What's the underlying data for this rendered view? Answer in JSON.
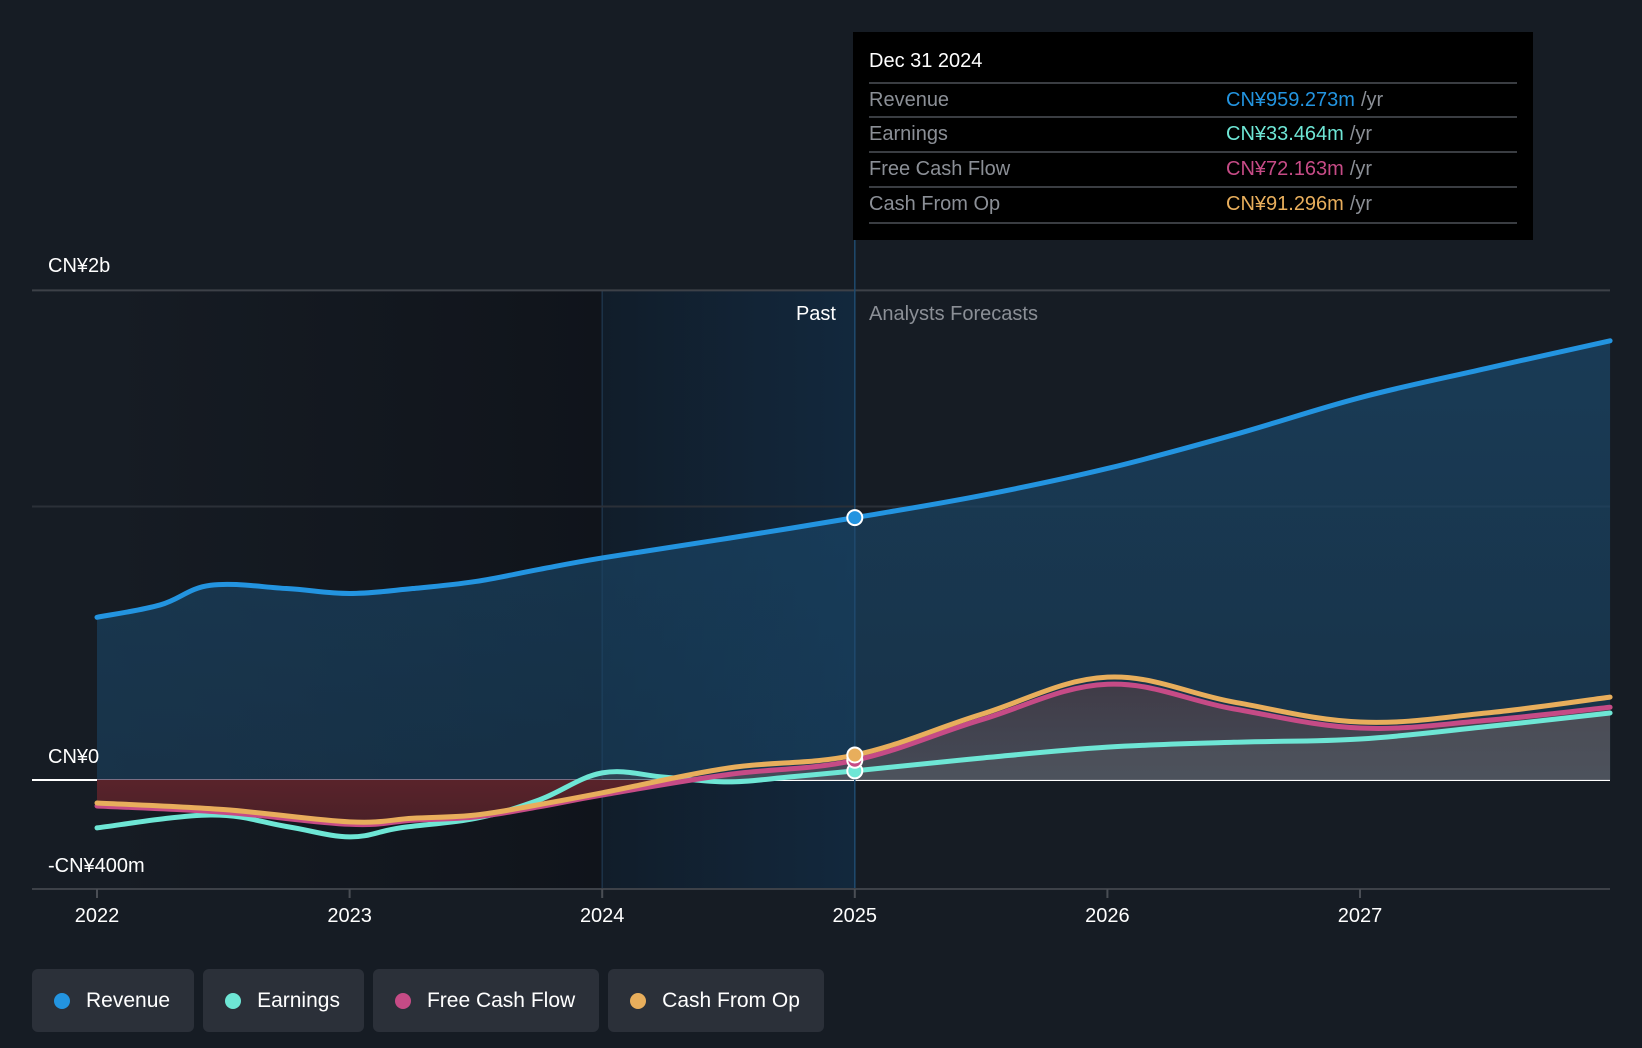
{
  "chart_data": {
    "type": "line",
    "title": "",
    "currency_unit": "CN¥ millions",
    "x_axis": {
      "ticks": [
        "2022",
        "2023",
        "2024",
        "2025",
        "2026",
        "2027"
      ],
      "range": [
        2022,
        2028
      ]
    },
    "y_axis": {
      "labels": [
        {
          "text": "CN¥2b",
          "value": 1790
        },
        {
          "text": "CN¥0",
          "value": 0
        },
        {
          "text": "-CN¥400m",
          "value": -400
        }
      ],
      "gridlines": [
        1790,
        1000
      ],
      "range": [
        -400,
        1790
      ]
    },
    "regions": {
      "past_label": "Past",
      "forecast_label": "Analysts Forecasts",
      "past_highlight": [
        2024,
        2025
      ],
      "divider": 2025
    },
    "series": [
      {
        "name": "Revenue",
        "color": "#2394e0",
        "points": [
          [
            2022,
            595
          ],
          [
            2022.25,
            640
          ],
          [
            2022.45,
            712
          ],
          [
            2022.75,
            700
          ],
          [
            2023,
            682
          ],
          [
            2023.25,
            700
          ],
          [
            2023.5,
            726
          ],
          [
            2023.75,
            770
          ],
          [
            2024,
            812
          ],
          [
            2024.5,
            884
          ],
          [
            2025,
            959.273
          ],
          [
            2025.5,
            1040
          ],
          [
            2026,
            1139
          ],
          [
            2026.5,
            1262
          ],
          [
            2027,
            1398
          ],
          [
            2027.5,
            1505
          ],
          [
            2027.99,
            1606
          ]
        ]
      },
      {
        "name": "Earnings",
        "color": "#6ee6d5",
        "points": [
          [
            2022,
            -175
          ],
          [
            2022.45,
            -128
          ],
          [
            2022.75,
            -170
          ],
          [
            2023,
            -208
          ],
          [
            2023.2,
            -175
          ],
          [
            2023.5,
            -140
          ],
          [
            2023.75,
            -73
          ],
          [
            2024,
            26
          ],
          [
            2024.25,
            10
          ],
          [
            2024.5,
            -7
          ],
          [
            2024.75,
            12
          ],
          [
            2025,
            33.464
          ],
          [
            2025.5,
            80
          ],
          [
            2026,
            120
          ],
          [
            2026.5,
            138
          ],
          [
            2027,
            150
          ],
          [
            2027.5,
            195
          ],
          [
            2027.99,
            245
          ]
        ]
      },
      {
        "name": "Free Cash Flow",
        "color": "#c64b86",
        "points": [
          [
            2022,
            -95
          ],
          [
            2022.5,
            -118
          ],
          [
            2023,
            -162
          ],
          [
            2023.25,
            -147
          ],
          [
            2023.5,
            -135
          ],
          [
            2023.75,
            -98
          ],
          [
            2024,
            -55
          ],
          [
            2024.5,
            20
          ],
          [
            2025,
            72.163
          ],
          [
            2025.5,
            220
          ],
          [
            2026,
            350
          ],
          [
            2026.5,
            260
          ],
          [
            2027,
            190
          ],
          [
            2027.5,
            218
          ],
          [
            2027.99,
            266
          ]
        ]
      },
      {
        "name": "Cash From Op",
        "color": "#e8ae5c",
        "points": [
          [
            2022,
            -84
          ],
          [
            2022.5,
            -108
          ],
          [
            2023,
            -153
          ],
          [
            2023.25,
            -140
          ],
          [
            2023.5,
            -128
          ],
          [
            2023.75,
            -90
          ],
          [
            2024,
            -47
          ],
          [
            2024.5,
            44
          ],
          [
            2025,
            91.296
          ],
          [
            2025.5,
            240
          ],
          [
            2026,
            376
          ],
          [
            2026.5,
            285
          ],
          [
            2027,
            212
          ],
          [
            2027.5,
            245
          ],
          [
            2027.99,
            303
          ]
        ]
      }
    ]
  },
  "tooltip": {
    "date": "Dec 31 2024",
    "unit": "/yr",
    "rows": [
      {
        "label": "Revenue",
        "value": "CN¥959.273m",
        "color": "#2394e0"
      },
      {
        "label": "Earnings",
        "value": "CN¥33.464m",
        "color": "#6ee6d5"
      },
      {
        "label": "Free Cash Flow",
        "value": "CN¥72.163m",
        "color": "#c64b86"
      },
      {
        "label": "Cash From Op",
        "value": "CN¥91.296m",
        "color": "#e8ae5c"
      }
    ]
  },
  "legend": [
    {
      "label": "Revenue",
      "color": "#2394e0"
    },
    {
      "label": "Earnings",
      "color": "#6ee6d5"
    },
    {
      "label": "Free Cash Flow",
      "color": "#c64b86"
    },
    {
      "label": "Cash From Op",
      "color": "#e8ae5c"
    }
  ]
}
